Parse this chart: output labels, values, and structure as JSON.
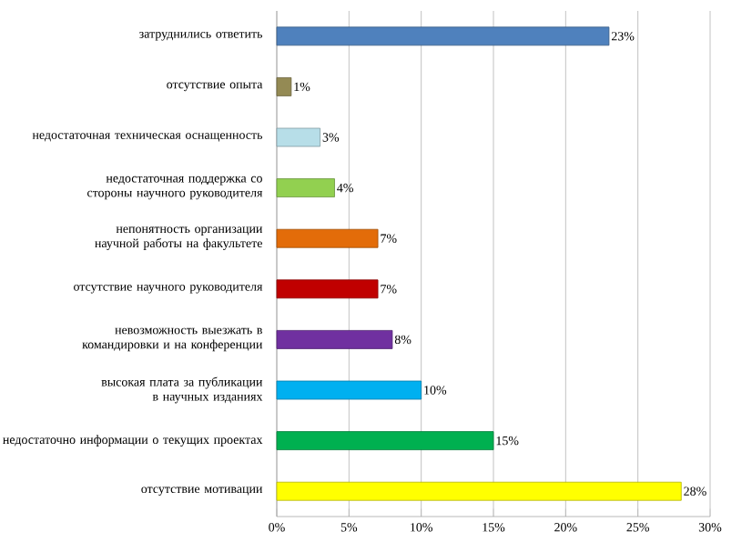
{
  "chart_data": {
    "type": "bar",
    "orientation": "horizontal",
    "categories": [
      "затруднились ответить",
      "отсутствие опыта",
      "недостаточная техническая оснащенность",
      "недостаточная поддержка со стороны научного руководителя",
      "непонятность организации научной работы на факультете",
      "отсутствие научного руководителя",
      "невозможность выезжать в командировки и на конференции",
      "высокая плата за публикации в научных изданиях",
      "недостаточно информации о текущих проектах",
      "отсутствие мотивации"
    ],
    "values": [
      23,
      1,
      3,
      4,
      7,
      7,
      8,
      10,
      15,
      28
    ],
    "value_labels": [
      "23%",
      "1%",
      "3%",
      "4%",
      "7%",
      "7%",
      "8%",
      "10%",
      "15%",
      "28%"
    ],
    "colors": [
      "#4f81bd",
      "#948a54",
      "#b7dee8",
      "#92d050",
      "#e36c09",
      "#c00000",
      "#7030a0",
      "#00b0f0",
      "#00b050",
      "#ffff00"
    ],
    "xlim": [
      0,
      30
    ],
    "xticks": [
      {
        "value": 0,
        "label": "0%"
      },
      {
        "value": 5,
        "label": "5%"
      },
      {
        "value": 10,
        "label": "10%"
      },
      {
        "value": 15,
        "label": "15%"
      },
      {
        "value": 20,
        "label": "20%"
      },
      {
        "value": 25,
        "label": "25%"
      },
      {
        "value": 30,
        "label": "30%"
      }
    ],
    "grid": "x"
  }
}
